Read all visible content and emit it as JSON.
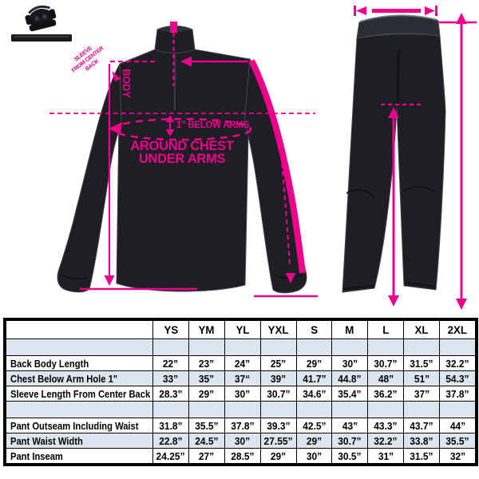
{
  "colors": {
    "accent": "#EC008C",
    "row_shade": "#DCE6F1",
    "garment": "#1D1F24"
  },
  "brand": {
    "logo_icon": "mascot-skull-emblem"
  },
  "jacket": {
    "labels": {
      "body": "BODY",
      "below_arms": "1” BELOW ARMS",
      "around_chest": [
        "AROUND CHEST",
        "UNDER ARMS"
      ],
      "sleeve_diagonal": [
        "SLEEVE",
        "FROM CENTER",
        "BACK"
      ]
    }
  },
  "size_chart": {
    "columns": [
      "YS",
      "YM",
      "YL",
      "YXL",
      "S",
      "M",
      "L",
      "XL",
      "2XL"
    ],
    "groups": [
      {
        "rows": [
          {
            "label": "Back Body Length",
            "values": [
              "22”",
              "23”",
              "24”",
              "25”",
              "29”",
              "30”",
              "30.7”",
              "31.5”",
              "32.2”"
            ]
          },
          {
            "label": "Chest Below Arm Hole 1\"",
            "values": [
              "33”",
              "35”",
              "37“",
              "39”",
              "41.7”",
              "44.8”",
              "48”",
              "51”",
              "54.3”"
            ]
          },
          {
            "label": "Sleeve Length From Center Back",
            "values": [
              "28.3”",
              "29”",
              "30”",
              "30.7”",
              "34.6”",
              "35.4”",
              "36.2”",
              "37”",
              "37.8”"
            ]
          }
        ]
      },
      {
        "rows": [
          {
            "label": "Pant Outseam Including Waist",
            "values": [
              "31.8”",
              "35.5”",
              "37.8”",
              "39.3”",
              "42.5”",
              "43”",
              "43.3”",
              "43.7”",
              "44”"
            ]
          },
          {
            "label": "Pant Waist Width",
            "values": [
              "22.8”",
              "24.5”",
              "30”",
              "27.55”",
              "29”",
              "30.7”",
              "32.2”",
              "33.8”",
              "35.5”"
            ]
          },
          {
            "label": "Pant Inseam",
            "values": [
              "24.25”",
              "27”",
              "28.5”",
              "29”",
              "30”",
              "30.5”",
              "31”",
              "31.5”",
              "32”"
            ]
          }
        ]
      }
    ]
  }
}
